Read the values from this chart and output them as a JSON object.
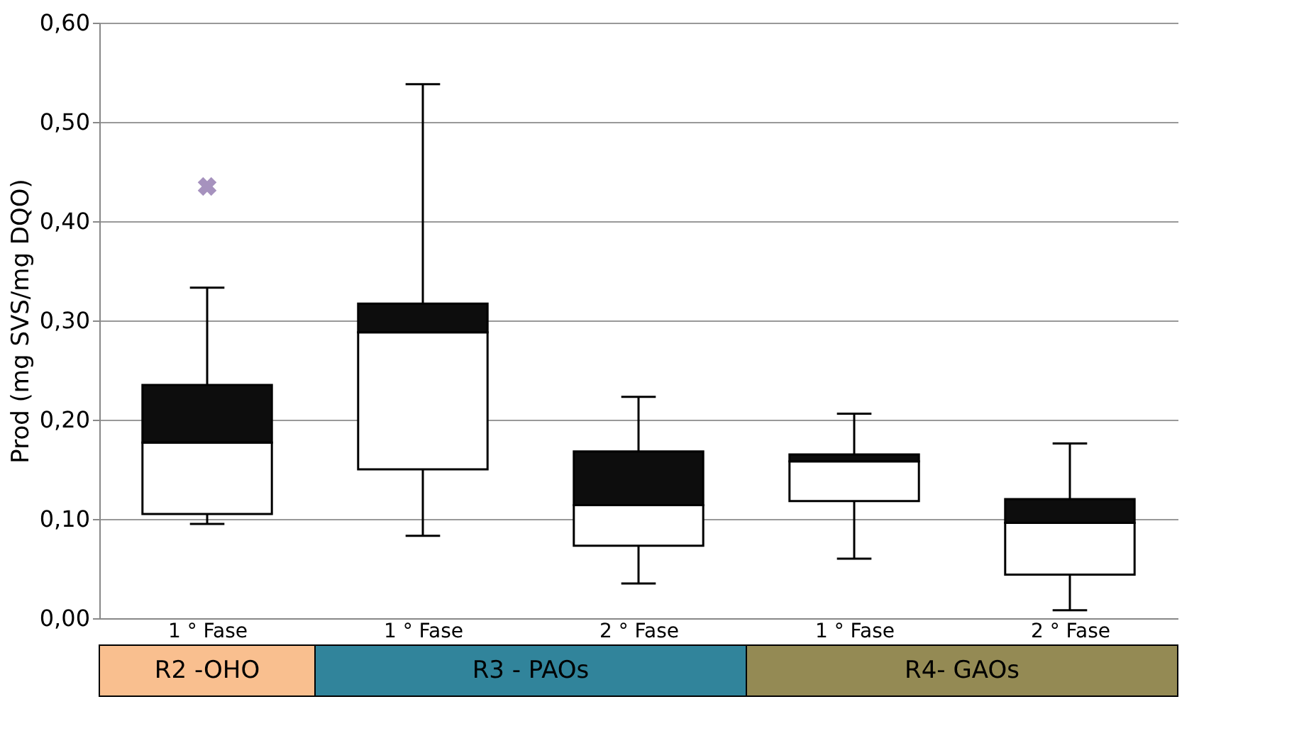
{
  "chart_data": {
    "type": "box",
    "ylabel": "Prod (mg SVS/mg DQO)",
    "categories": [
      "1 ° Fase",
      "1 ° Fase",
      "2 ° Fase",
      "1 ° Fase",
      "2 ° Fase"
    ],
    "boxes": [
      {
        "low": 0.095,
        "q1": 0.105,
        "median": 0.177,
        "q3": 0.235,
        "high": 0.333,
        "outliers": [
          0.435
        ]
      },
      {
        "low": 0.083,
        "q1": 0.15,
        "median": 0.288,
        "q3": 0.317,
        "high": 0.538
      },
      {
        "low": 0.035,
        "q1": 0.073,
        "median": 0.114,
        "q3": 0.168,
        "high": 0.223
      },
      {
        "low": 0.06,
        "q1": 0.118,
        "median": 0.158,
        "q3": 0.165,
        "high": 0.206
      },
      {
        "low": 0.008,
        "q1": 0.044,
        "median": 0.096,
        "q3": 0.12,
        "high": 0.176
      }
    ],
    "ylim": [
      0,
      0.6
    ],
    "yticks": [
      {
        "value": 0,
        "label": "0,00"
      },
      {
        "value": 0.1,
        "label": "0,10"
      },
      {
        "value": 0.2,
        "label": "0,20"
      },
      {
        "value": 0.3,
        "label": "0,30"
      },
      {
        "value": 0.4,
        "label": "0,40"
      },
      {
        "value": 0.5,
        "label": "0,50"
      },
      {
        "value": 0.6,
        "label": "0,60"
      }
    ],
    "grid": "y",
    "annotations": [
      "R2 -OHO",
      "R3 - PAOs",
      "R4- GAOs"
    ]
  }
}
